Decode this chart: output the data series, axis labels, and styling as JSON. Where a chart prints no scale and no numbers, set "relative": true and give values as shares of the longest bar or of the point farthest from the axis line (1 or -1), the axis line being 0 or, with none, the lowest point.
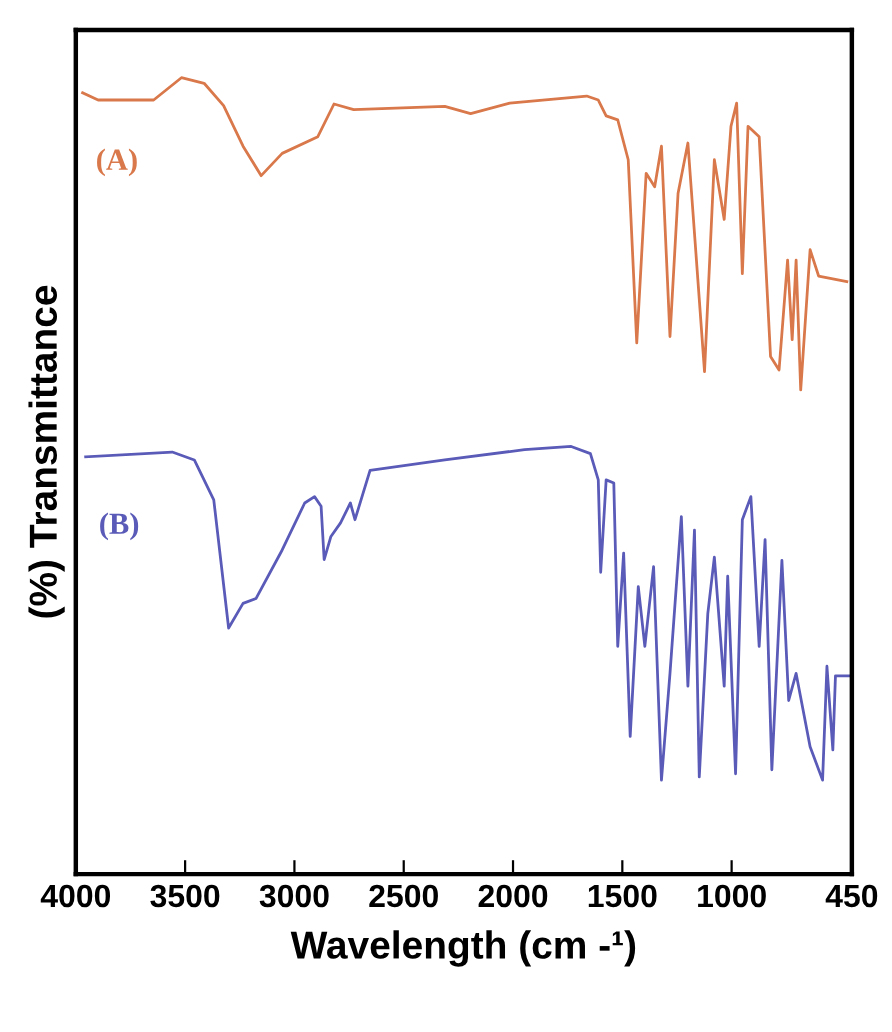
{
  "chart_data": {
    "type": "line",
    "relative": true,
    "xlabel": "Wavelength (cm -¹)",
    "ylabel": "(%) Transmittance",
    "xlim": [
      4000,
      450
    ],
    "xticks": [
      4000,
      3500,
      3000,
      2500,
      2000,
      1500,
      1000,
      450
    ],
    "grid": false,
    "legend": false,
    "tick_labels": "x",
    "marker": "none",
    "line_style": "solid",
    "series": [
      {
        "name": "(A)",
        "color": "#d9784a",
        "x": [
          3969,
          3898,
          3644,
          3517,
          3413,
          3324,
          3235,
          3152,
          3056,
          2893,
          2819,
          2729,
          2312,
          2194,
          2015,
          1663,
          1610,
          1574,
          1521,
          1473,
          1434,
          1391,
          1352,
          1321,
          1282,
          1245,
          1200,
          1161,
          1124,
          1079,
          1034,
          1003,
          977,
          951,
          925,
          874,
          822,
          783,
          744,
          723,
          705,
          684,
          641,
          602,
          473
        ],
        "values": [
          0.981,
          0.972,
          0.972,
          1,
          0.993,
          0.965,
          0.914,
          0.877,
          0.905,
          0.926,
          0.967,
          0.96,
          0.964,
          0.955,
          0.968,
          0.977,
          0.972,
          0.952,
          0.947,
          0.897,
          0.667,
          0.88,
          0.863,
          0.914,
          0.675,
          0.855,
          0.918,
          0.771,
          0.631,
          0.897,
          0.822,
          0.939,
          0.968,
          0.754,
          0.939,
          0.926,
          0.65,
          0.633,
          0.771,
          0.671,
          0.771,
          0.608,
          0.784,
          0.751,
          0.744
        ]
      },
      {
        "name": "(B)",
        "color": "#5a5ab8",
        "x": [
          3955,
          3559,
          3458,
          3369,
          3301,
          3235,
          3176,
          3056,
          2953,
          2908,
          2878,
          2864,
          2833,
          2789,
          2744,
          2723,
          2654,
          2312,
          1947,
          1734,
          1646,
          1610,
          1599,
          1574,
          1539,
          1521,
          1494,
          1464,
          1427,
          1397,
          1357,
          1321,
          1282,
          1230,
          1200,
          1170,
          1148,
          1109,
          1079,
          1034,
          1018,
          982,
          951,
          912,
          874,
          847,
          816,
          770,
          739,
          705,
          641,
          584,
          564,
          537,
          525,
          460
        ],
        "values": [
          0.524,
          0.53,
          0.52,
          0.47,
          0.309,
          0.34,
          0.346,
          0.407,
          0.466,
          0.474,
          0.462,
          0.395,
          0.424,
          0.441,
          0.466,
          0.445,
          0.507,
          0.52,
          0.533,
          0.537,
          0.528,
          0.495,
          0.379,
          0.495,
          0.491,
          0.286,
          0.403,
          0.173,
          0.361,
          0.286,
          0.386,
          0.118,
          0.252,
          0.449,
          0.236,
          0.432,
          0.122,
          0.327,
          0.398,
          0.236,
          0.374,
          0.126,
          0.445,
          0.474,
          0.286,
          0.42,
          0.131,
          0.394,
          0.218,
          0.252,
          0.16,
          0.118,
          0.261,
          0.156,
          0.249,
          0.249
        ]
      }
    ]
  }
}
